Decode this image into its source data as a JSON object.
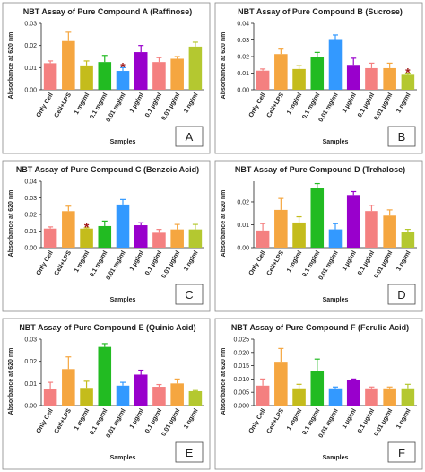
{
  "chart_data": [
    {
      "type": "bar",
      "title": "NBT Assay of Pure Compound A (Raffinose)",
      "y_label": "Absorbance at 620 nm",
      "x_label": "Samples",
      "panel": "A",
      "categories": [
        "Only Cell",
        "Cell+LPS",
        "1 mg/ml",
        "0.1 mg/ml",
        "0.01 mg/ml",
        "1 µg/ml",
        "0.1 µg/ml",
        "0.01 µg/ml",
        "1 ng/ml"
      ],
      "values": [
        0.012,
        0.022,
        0.011,
        0.0125,
        0.0085,
        0.017,
        0.0125,
        0.014,
        0.0195
      ],
      "errors": [
        0.001,
        0.004,
        0.002,
        0.003,
        0.0015,
        0.003,
        0.002,
        0.001,
        0.002
      ],
      "colors": [
        "#f48080",
        "#f5a640",
        "#c4bc1c",
        "#22bb22",
        "#3399ff",
        "#9900cc",
        "#f48080",
        "#f5a640",
        "#b4c830"
      ],
      "ylim": [
        0,
        0.03
      ],
      "yticks": [
        {
          "value": 0,
          "label": "0.00"
        },
        0.01,
        0.02,
        0.03
      ],
      "annotations": [
        {
          "label": "*",
          "category": "0.01 mg/ml"
        }
      ]
    },
    {
      "type": "bar",
      "title": "NBT Assay of Pure Compound B (Sucrose)",
      "y_label": "Absorbance at 620 nm",
      "x_label": "Samples",
      "panel": "B",
      "categories": [
        "Only Cell",
        "Cell+LPS",
        "1 mg/ml",
        "0.1 mg/ml",
        "0.01 mg/ml",
        "1 µg/ml",
        "0.1 µg/ml",
        "0.01 µg/ml",
        "1 ng/ml"
      ],
      "values": [
        0.0115,
        0.0215,
        0.0125,
        0.0195,
        0.03,
        0.015,
        0.013,
        0.013,
        0.009
      ],
      "errors": [
        0.001,
        0.003,
        0.002,
        0.003,
        0.003,
        0.004,
        0.003,
        0.003,
        0.001
      ],
      "colors": [
        "#f48080",
        "#f5a640",
        "#c4bc1c",
        "#22bb22",
        "#3399ff",
        "#9900cc",
        "#f48080",
        "#f5a640",
        "#b4c830"
      ],
      "ylim": [
        0,
        0.04
      ],
      "yticks": [
        {
          "value": 0,
          "label": "0.00"
        },
        0.01,
        0.02,
        0.03,
        0.04
      ],
      "annotations": [
        {
          "label": "*",
          "category": "1 ng/ml"
        }
      ]
    },
    {
      "type": "bar",
      "title": "NBT Assay of Pure Compound C (Benzoic Acid)",
      "y_label": "Absorbance at 620 nm",
      "x_label": "Samples",
      "panel": "C",
      "categories": [
        "Only Cell",
        "Cell+LPS",
        "1 mg/ml",
        "0.1 mg/ml",
        "0.01 mg/ml",
        "1 µg/ml",
        "0.1 µg/ml",
        "0.01 µg/ml",
        "1 ng/ml"
      ],
      "values": [
        0.0115,
        0.022,
        0.0115,
        0.013,
        0.026,
        0.0135,
        0.009,
        0.011,
        0.011
      ],
      "errors": [
        0.001,
        0.003,
        0.0005,
        0.003,
        0.003,
        0.0015,
        0.002,
        0.003,
        0.003
      ],
      "colors": [
        "#f48080",
        "#f5a640",
        "#c4bc1c",
        "#22bb22",
        "#3399ff",
        "#9900cc",
        "#f48080",
        "#f5a640",
        "#b4c830"
      ],
      "ylim": [
        0,
        0.04
      ],
      "yticks": [
        {
          "value": 0,
          "label": "0.00"
        },
        0.01,
        0.02,
        0.03,
        0.04
      ],
      "annotations": [
        {
          "label": "*",
          "category": "1 mg/ml"
        }
      ]
    },
    {
      "type": "bar",
      "title": "NBT Assay of Pure Compound D (Trehalose)",
      "y_label": "Absorbance at 620 nm",
      "x_label": "Samples",
      "panel": "D",
      "categories": [
        "Only Cell",
        "Cell+LPS",
        "1 mg/ml",
        "0.1 mg/ml",
        "0.01 mg/ml",
        "1 µg/ml",
        "0.1 µg/ml",
        "0.01 µg/ml",
        "1 ng/ml"
      ],
      "values": [
        0.0075,
        0.0165,
        0.011,
        0.026,
        0.008,
        0.023,
        0.016,
        0.014,
        0.007
      ],
      "errors": [
        0.003,
        0.005,
        0.0025,
        0.002,
        0.0025,
        0.0015,
        0.0025,
        0.0025,
        0.001
      ],
      "colors": [
        "#f48080",
        "#f5a640",
        "#c4bc1c",
        "#22bb22",
        "#3399ff",
        "#9900cc",
        "#f48080",
        "#f5a640",
        "#b4c830"
      ],
      "ylim": [
        0,
        0.029
      ],
      "yticks": [
        {
          "value": 0,
          "label": "0.00"
        },
        0.01,
        0.02
      ],
      "annotations": []
    },
    {
      "type": "bar",
      "title": "NBT Assay of Pure Compound E (Quinic Acid)",
      "y_label": "Absorbance at 620 nm",
      "x_label": "Samples",
      "panel": "E",
      "categories": [
        "Only Cell",
        "Cell+LPS",
        "1 mg/ml",
        "0.1 mg/ml",
        "0.01 mg/ml",
        "1 µg/ml",
        "0.1 µg/ml",
        "0.01 µg/ml",
        "1 ng/ml"
      ],
      "values": [
        0.0075,
        0.0165,
        0.008,
        0.0265,
        0.009,
        0.014,
        0.0085,
        0.01,
        0.0065
      ],
      "errors": [
        0.003,
        0.0055,
        0.003,
        0.0015,
        0.0015,
        0.002,
        0.001,
        0.002,
        0.0003
      ],
      "colors": [
        "#f48080",
        "#f5a640",
        "#c4bc1c",
        "#22bb22",
        "#3399ff",
        "#9900cc",
        "#f48080",
        "#f5a640",
        "#b4c830"
      ],
      "ylim": [
        0,
        0.03
      ],
      "yticks": [
        {
          "value": 0,
          "label": "0.00"
        },
        0.01,
        0.02,
        0.03
      ],
      "annotations": []
    },
    {
      "type": "bar",
      "title": "NBT Assay of Pure Compound F (Ferulic Acid)",
      "y_label": "Absorbance at 620 nm",
      "x_label": "Samples",
      "panel": "F",
      "categories": [
        "Only Cell",
        "Cell+LPS",
        "1 mg/ml",
        "0.1 mg/ml",
        "0.01 mg/ml",
        "1 µg/ml",
        "0.1 µg/ml",
        "0.01 µg/ml",
        "1 ng/ml"
      ],
      "values": [
        0.0075,
        0.0165,
        0.0065,
        0.013,
        0.0065,
        0.0095,
        0.0065,
        0.0065,
        0.0065
      ],
      "errors": [
        0.0025,
        0.005,
        0.0015,
        0.0045,
        0.0005,
        0.0005,
        0.0005,
        0.0005,
        0.0015
      ],
      "colors": [
        "#f48080",
        "#f5a640",
        "#c4bc1c",
        "#22bb22",
        "#3399ff",
        "#9900cc",
        "#f48080",
        "#f5a640",
        "#b4c830"
      ],
      "ylim": [
        0,
        0.025
      ],
      "yticks": [
        {
          "value": 0,
          "label": "0.000"
        },
        0.005,
        {
          "value": 0.01,
          "label": "0.010"
        },
        0.015,
        {
          "value": 0.02,
          "label": "0.020"
        },
        0.025
      ],
      "annotations": []
    }
  ]
}
